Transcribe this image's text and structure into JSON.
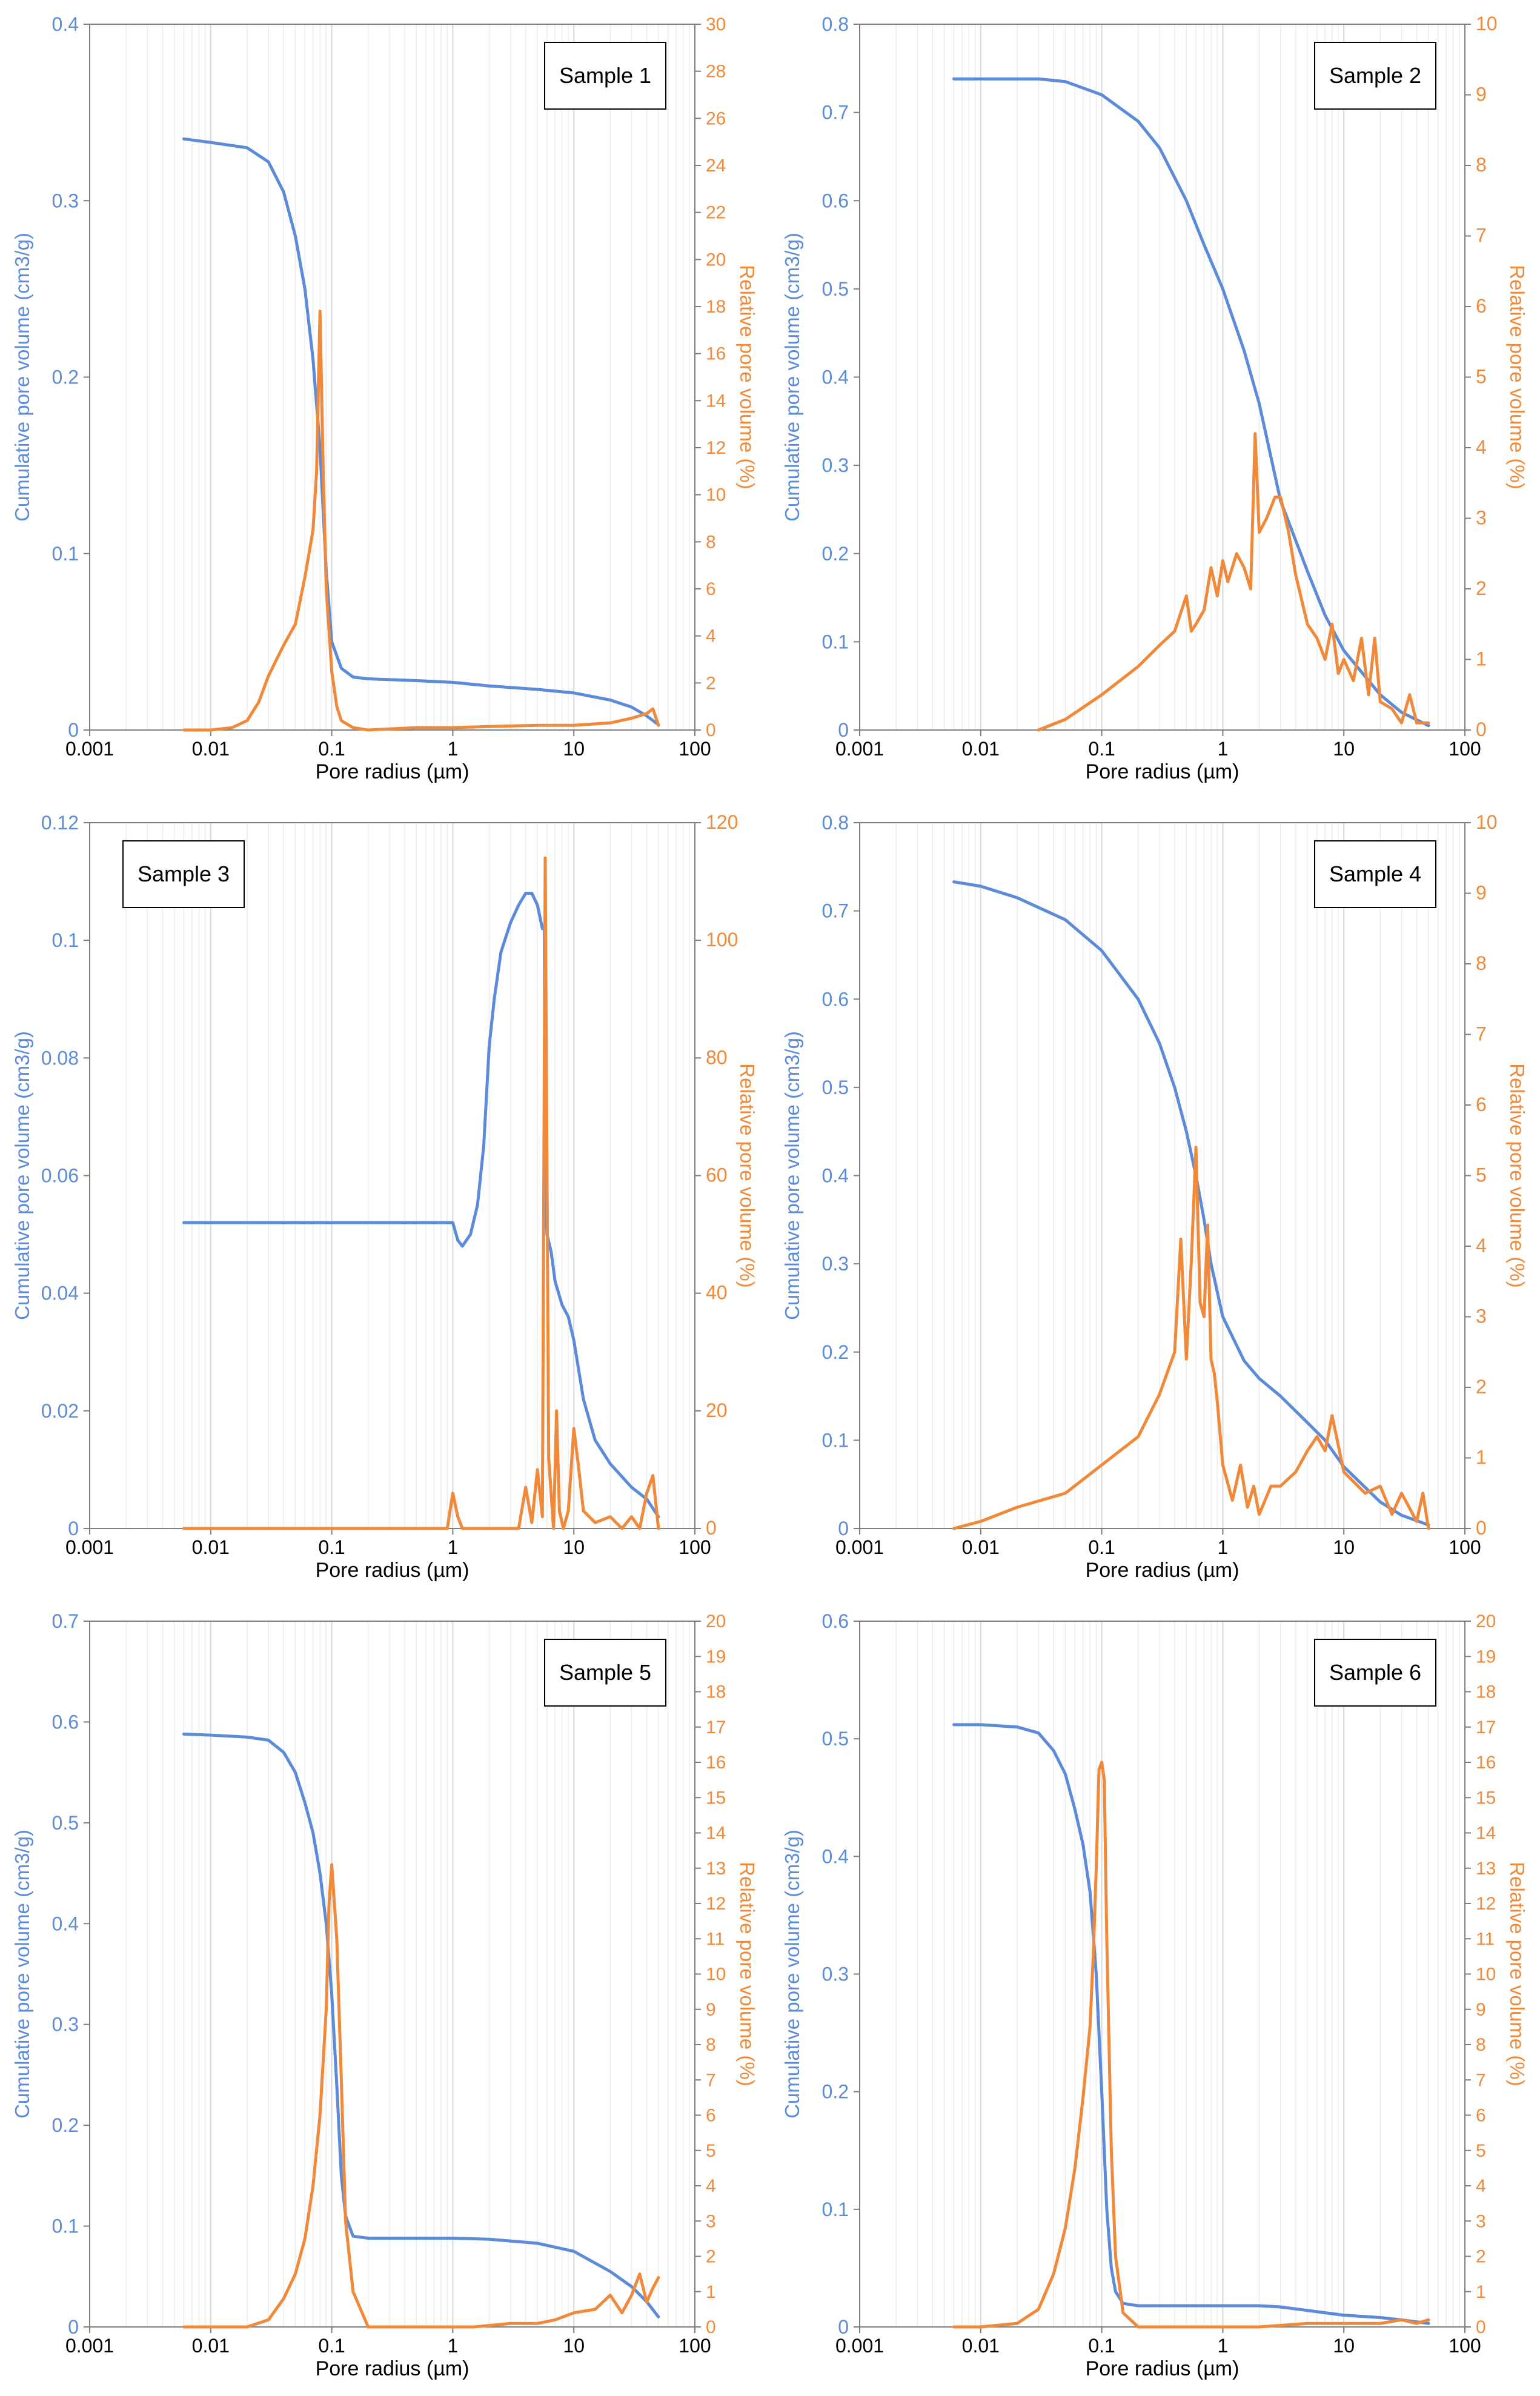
{
  "figure": {
    "colors": {
      "cumulative": "#5b8bd9",
      "relative": "#f08a3a",
      "grid": "#d9d9d9",
      "axis": "#7f7f7f",
      "text": "#000000"
    },
    "x_axis_label": "Pore radius (µm)",
    "x_tick_labels": [
      "0.001",
      "0.01",
      "0.1",
      "1",
      "10",
      "100"
    ]
  },
  "chart_data": [
    {
      "type": "line",
      "title": "Sample 1",
      "legend": "top-right",
      "xlabel": "Pore radius (µm)",
      "ylabel": "Cumulative pore volume (cm3/g)",
      "y2label": "Relative pore volume (%)",
      "xscale": "log",
      "xlim": [
        0.001,
        100
      ],
      "ylim": [
        0,
        0.4
      ],
      "y2lim": [
        0,
        30
      ],
      "x_ticks": [
        "0.001",
        "0.01",
        "0.1",
        "1",
        "10",
        "100"
      ],
      "y_ticks": [
        "0",
        "0.1",
        "0.2",
        "0.3",
        "0.4"
      ],
      "y2_ticks": [
        "0",
        "2",
        "4",
        "6",
        "8",
        "10",
        "12",
        "14",
        "16",
        "18",
        "20",
        "22",
        "24",
        "26",
        "28",
        "30"
      ],
      "series": [
        {
          "name": "Cumulative pore volume",
          "axis": "left",
          "x": [
            0.006,
            0.01,
            0.02,
            0.03,
            0.04,
            0.05,
            0.06,
            0.07,
            0.08,
            0.09,
            0.1,
            0.12,
            0.15,
            0.2,
            0.5,
            1,
            2,
            5,
            10,
            20,
            30,
            40,
            50
          ],
          "y": [
            0.335,
            0.333,
            0.33,
            0.322,
            0.305,
            0.28,
            0.25,
            0.21,
            0.16,
            0.09,
            0.05,
            0.035,
            0.03,
            0.029,
            0.028,
            0.027,
            0.025,
            0.023,
            0.021,
            0.017,
            0.013,
            0.008,
            0.003
          ]
        },
        {
          "name": "Relative pore volume",
          "axis": "right",
          "x": [
            0.006,
            0.01,
            0.015,
            0.02,
            0.025,
            0.03,
            0.035,
            0.04,
            0.05,
            0.06,
            0.07,
            0.075,
            0.08,
            0.085,
            0.09,
            0.1,
            0.11,
            0.12,
            0.15,
            0.2,
            0.5,
            1,
            2,
            5,
            10,
            20,
            30,
            40,
            45,
            50
          ],
          "y": [
            0,
            0,
            0.1,
            0.4,
            1.2,
            2.3,
            3.0,
            3.6,
            4.5,
            6.5,
            8.5,
            11,
            17.8,
            11,
            6,
            2.5,
            1.0,
            0.4,
            0.1,
            0,
            0.1,
            0.1,
            0.15,
            0.2,
            0.2,
            0.3,
            0.5,
            0.7,
            0.9,
            0.2
          ]
        }
      ]
    },
    {
      "type": "line",
      "title": "Sample 2",
      "legend": "top-right",
      "xlabel": "Pore radius (µm)",
      "ylabel": "Cumulative pore volume (cm3/g)",
      "y2label": "Relative pore volume (%)",
      "xscale": "log",
      "xlim": [
        0.001,
        100
      ],
      "ylim": [
        0,
        0.8
      ],
      "y2lim": [
        0,
        10
      ],
      "x_ticks": [
        "0.001",
        "0.01",
        "0.1",
        "1",
        "10",
        "100"
      ],
      "y_ticks": [
        "0",
        "0.1",
        "0.2",
        "0.3",
        "0.4",
        "0.5",
        "0.6",
        "0.7",
        "0.8"
      ],
      "y2_ticks": [
        "0",
        "1",
        "2",
        "3",
        "4",
        "5",
        "6",
        "7",
        "8",
        "9",
        "10"
      ],
      "series": [
        {
          "name": "Cumulative pore volume",
          "axis": "left",
          "x": [
            0.006,
            0.01,
            0.03,
            0.05,
            0.1,
            0.2,
            0.3,
            0.5,
            0.7,
            1,
            1.5,
            2,
            3,
            5,
            7,
            10,
            20,
            30,
            50
          ],
          "y": [
            0.738,
            0.738,
            0.738,
            0.735,
            0.72,
            0.69,
            0.66,
            0.6,
            0.55,
            0.5,
            0.43,
            0.37,
            0.26,
            0.18,
            0.13,
            0.09,
            0.04,
            0.02,
            0.005
          ]
        },
        {
          "name": "Relative pore volume",
          "axis": "right",
          "x": [
            0.03,
            0.05,
            0.1,
            0.2,
            0.3,
            0.4,
            0.5,
            0.55,
            0.6,
            0.7,
            0.8,
            0.9,
            1.0,
            1.1,
            1.3,
            1.5,
            1.7,
            1.85,
            2.0,
            2.3,
            2.7,
            3.0,
            3.5,
            4,
            5,
            6,
            7,
            8,
            9,
            10,
            12,
            14,
            16,
            18,
            20,
            25,
            30,
            35,
            40,
            50
          ],
          "y": [
            0,
            0.15,
            0.5,
            0.9,
            1.2,
            1.4,
            1.9,
            1.4,
            1.5,
            1.7,
            2.3,
            1.9,
            2.4,
            2.1,
            2.5,
            2.3,
            2.0,
            4.2,
            2.8,
            3.0,
            3.3,
            3.3,
            2.8,
            2.2,
            1.5,
            1.3,
            1.0,
            1.5,
            0.8,
            1.0,
            0.7,
            1.3,
            0.5,
            1.3,
            0.4,
            0.3,
            0.1,
            0.5,
            0.1,
            0.1
          ]
        }
      ]
    },
    {
      "type": "line",
      "title": "Sample 3",
      "legend": "top-left",
      "xlabel": "Pore radius (µm)",
      "ylabel": "Cumulative pore volume (cm3/g)",
      "y2label": "Relative pore volume (%)",
      "xscale": "log",
      "xlim": [
        0.001,
        100
      ],
      "ylim": [
        0,
        0.12
      ],
      "y2lim": [
        0,
        120
      ],
      "x_ticks": [
        "0.001",
        "0.01",
        "0.1",
        "1",
        "10",
        "100"
      ],
      "y_ticks": [
        "0",
        "0.02",
        "0.04",
        "0.06",
        "0.08",
        "0.1",
        "0.12"
      ],
      "y2_ticks": [
        "0",
        "20",
        "40",
        "60",
        "80",
        "100",
        "120"
      ],
      "series": [
        {
          "name": "Cumulative pore volume",
          "axis": "left",
          "x": [
            0.006,
            0.01,
            0.1,
            1.0,
            1.1,
            1.2,
            1.4,
            1.6,
            1.8,
            2.0,
            2.2,
            2.5,
            3.0,
            3.5,
            4.0,
            4.5,
            5.0,
            5.5,
            5.7,
            5.8,
            6.0,
            6.5,
            7,
            8,
            9,
            10,
            12,
            15,
            20,
            30,
            40,
            50
          ],
          "y": [
            0.052,
            0.052,
            0.052,
            0.052,
            0.049,
            0.048,
            0.05,
            0.055,
            0.065,
            0.082,
            0.09,
            0.098,
            0.103,
            0.106,
            0.108,
            0.108,
            0.106,
            0.102,
            0.102,
            0.06,
            0.05,
            0.047,
            0.042,
            0.038,
            0.036,
            0.032,
            0.022,
            0.015,
            0.011,
            0.007,
            0.005,
            0.002
          ]
        },
        {
          "name": "Relative pore volume",
          "axis": "right",
          "x": [
            0.006,
            0.1,
            0.9,
            1.0,
            1.1,
            1.2,
            3.5,
            4.0,
            4.5,
            5.0,
            5.5,
            5.8,
            6.2,
            6.8,
            7.2,
            7.6,
            8.2,
            9,
            10,
            11,
            12,
            15,
            20,
            25,
            30,
            35,
            40,
            45,
            50
          ],
          "y": [
            0,
            0,
            0,
            6,
            2,
            0,
            0,
            7,
            1,
            10,
            2,
            114,
            12,
            0,
            20,
            3,
            0,
            3,
            17,
            10,
            3,
            1,
            2,
            0,
            2,
            0,
            6,
            9,
            0
          ]
        }
      ]
    },
    {
      "type": "line",
      "title": "Sample 4",
      "legend": "top-right",
      "xlabel": "Pore radius (µm)",
      "ylabel": "Cumulative pore volume (cm3/g)",
      "y2label": "Relative pore volume (%)",
      "xscale": "log",
      "xlim": [
        0.001,
        100
      ],
      "ylim": [
        0,
        0.8
      ],
      "y2lim": [
        0,
        10
      ],
      "x_ticks": [
        "0.001",
        "0.01",
        "0.1",
        "1",
        "10",
        "100"
      ],
      "y_ticks": [
        "0",
        "0.1",
        "0.2",
        "0.3",
        "0.4",
        "0.5",
        "0.6",
        "0.7",
        "0.8"
      ],
      "y2_ticks": [
        "0",
        "1",
        "2",
        "3",
        "4",
        "5",
        "6",
        "7",
        "8",
        "9",
        "10"
      ],
      "series": [
        {
          "name": "Cumulative pore volume",
          "axis": "left",
          "x": [
            0.006,
            0.01,
            0.02,
            0.05,
            0.1,
            0.2,
            0.3,
            0.4,
            0.5,
            0.6,
            0.7,
            0.8,
            1.0,
            1.5,
            2,
            3,
            5,
            7,
            10,
            20,
            30,
            50
          ],
          "y": [
            0.733,
            0.728,
            0.715,
            0.69,
            0.655,
            0.6,
            0.55,
            0.5,
            0.45,
            0.4,
            0.35,
            0.3,
            0.24,
            0.19,
            0.17,
            0.15,
            0.12,
            0.1,
            0.07,
            0.03,
            0.015,
            0.004
          ]
        },
        {
          "name": "Relative pore volume",
          "axis": "right",
          "x": [
            0.006,
            0.01,
            0.02,
            0.05,
            0.1,
            0.2,
            0.3,
            0.4,
            0.45,
            0.5,
            0.55,
            0.6,
            0.65,
            0.7,
            0.75,
            0.8,
            0.85,
            0.9,
            1.0,
            1.2,
            1.4,
            1.6,
            1.8,
            2.0,
            2.5,
            3,
            4,
            5,
            6,
            7,
            8,
            10,
            15,
            20,
            25,
            30,
            40,
            45,
            50
          ],
          "y": [
            0,
            0.1,
            0.3,
            0.5,
            0.9,
            1.3,
            1.9,
            2.5,
            4.1,
            2.4,
            3.8,
            5.4,
            3.2,
            3.0,
            4.3,
            2.4,
            2.2,
            1.8,
            0.9,
            0.4,
            0.9,
            0.3,
            0.6,
            0.2,
            0.6,
            0.6,
            0.8,
            1.1,
            1.3,
            1.1,
            1.6,
            0.8,
            0.5,
            0.6,
            0.2,
            0.5,
            0.1,
            0.5,
            0
          ]
        }
      ]
    },
    {
      "type": "line",
      "title": "Sample 5",
      "legend": "top-right",
      "xlabel": "Pore radius (µm)",
      "ylabel": "Cumulative pore volume (cm3/g)",
      "y2label": "Relative pore volume (%)",
      "xscale": "log",
      "xlim": [
        0.001,
        100
      ],
      "ylim": [
        0,
        0.7
      ],
      "y2lim": [
        0,
        20
      ],
      "x_ticks": [
        "0.001",
        "0.01",
        "0.1",
        "1",
        "10",
        "100"
      ],
      "y_ticks": [
        "0",
        "0.1",
        "0.2",
        "0.3",
        "0.4",
        "0.5",
        "0.6",
        "0.7"
      ],
      "y2_ticks": [
        "0",
        "1",
        "2",
        "3",
        "4",
        "5",
        "6",
        "7",
        "8",
        "9",
        "10",
        "11",
        "12",
        "13",
        "14",
        "15",
        "16",
        "17",
        "18",
        "19",
        "20"
      ],
      "series": [
        {
          "name": "Cumulative pore volume",
          "axis": "left",
          "x": [
            0.006,
            0.01,
            0.02,
            0.03,
            0.04,
            0.05,
            0.06,
            0.07,
            0.08,
            0.09,
            0.1,
            0.11,
            0.12,
            0.13,
            0.15,
            0.2,
            0.5,
            1,
            2,
            5,
            10,
            20,
            30,
            40,
            50
          ],
          "y": [
            0.588,
            0.587,
            0.585,
            0.582,
            0.57,
            0.55,
            0.52,
            0.49,
            0.45,
            0.4,
            0.33,
            0.24,
            0.15,
            0.11,
            0.09,
            0.088,
            0.088,
            0.088,
            0.087,
            0.083,
            0.075,
            0.055,
            0.04,
            0.025,
            0.01
          ]
        },
        {
          "name": "Relative pore volume",
          "axis": "right",
          "x": [
            0.006,
            0.02,
            0.03,
            0.04,
            0.05,
            0.06,
            0.07,
            0.08,
            0.09,
            0.095,
            0.1,
            0.11,
            0.12,
            0.13,
            0.15,
            0.2,
            1.5,
            3,
            5,
            7,
            10,
            15,
            20,
            25,
            30,
            35,
            40,
            45,
            50
          ],
          "y": [
            0,
            0,
            0.2,
            0.8,
            1.5,
            2.5,
            4.0,
            6.0,
            9.0,
            12.0,
            13.1,
            11.0,
            7.0,
            3.0,
            1.0,
            0,
            0,
            0.1,
            0.1,
            0.2,
            0.4,
            0.5,
            0.9,
            0.4,
            0.9,
            1.5,
            0.7,
            1.1,
            1.4
          ]
        }
      ]
    },
    {
      "type": "line",
      "title": "Sample 6",
      "legend": "top-right",
      "xlabel": "Pore radius (µm)",
      "ylabel": "Cumulative pore volume (cm3/g)",
      "y2label": "Relative pore volume (%)",
      "xscale": "log",
      "xlim": [
        0.001,
        100
      ],
      "ylim": [
        0,
        0.6
      ],
      "y2lim": [
        0,
        20
      ],
      "x_ticks": [
        "0.001",
        "0.01",
        "0.1",
        "1",
        "10",
        "100"
      ],
      "y_ticks": [
        "0",
        "0.1",
        "0.2",
        "0.3",
        "0.4",
        "0.5",
        "0.6"
      ],
      "y2_ticks": [
        "0",
        "1",
        "2",
        "3",
        "4",
        "5",
        "6",
        "7",
        "8",
        "9",
        "10",
        "11",
        "12",
        "13",
        "14",
        "15",
        "16",
        "17",
        "18",
        "19",
        "20"
      ],
      "series": [
        {
          "name": "Cumulative pore volume",
          "axis": "left",
          "x": [
            0.006,
            0.01,
            0.02,
            0.03,
            0.04,
            0.05,
            0.06,
            0.07,
            0.08,
            0.09,
            0.1,
            0.11,
            0.12,
            0.13,
            0.15,
            0.2,
            0.5,
            1,
            2,
            3,
            5,
            10,
            20,
            30,
            50
          ],
          "y": [
            0.512,
            0.512,
            0.51,
            0.505,
            0.49,
            0.47,
            0.44,
            0.41,
            0.37,
            0.3,
            0.2,
            0.1,
            0.05,
            0.03,
            0.02,
            0.018,
            0.018,
            0.018,
            0.018,
            0.017,
            0.014,
            0.01,
            0.008,
            0.006,
            0.003
          ]
        },
        {
          "name": "Relative pore volume",
          "axis": "right",
          "x": [
            0.006,
            0.01,
            0.02,
            0.03,
            0.04,
            0.05,
            0.06,
            0.07,
            0.08,
            0.085,
            0.09,
            0.095,
            0.1,
            0.105,
            0.11,
            0.12,
            0.13,
            0.15,
            0.2,
            2,
            5,
            10,
            20,
            30,
            40,
            50
          ],
          "y": [
            0,
            0,
            0.1,
            0.5,
            1.5,
            2.8,
            4.5,
            6.5,
            8.5,
            10.5,
            13.0,
            15.8,
            16.0,
            15.5,
            11.0,
            5.0,
            2.0,
            0.4,
            0,
            0,
            0.1,
            0.1,
            0.1,
            0.2,
            0.1,
            0.2
          ]
        }
      ]
    }
  ]
}
